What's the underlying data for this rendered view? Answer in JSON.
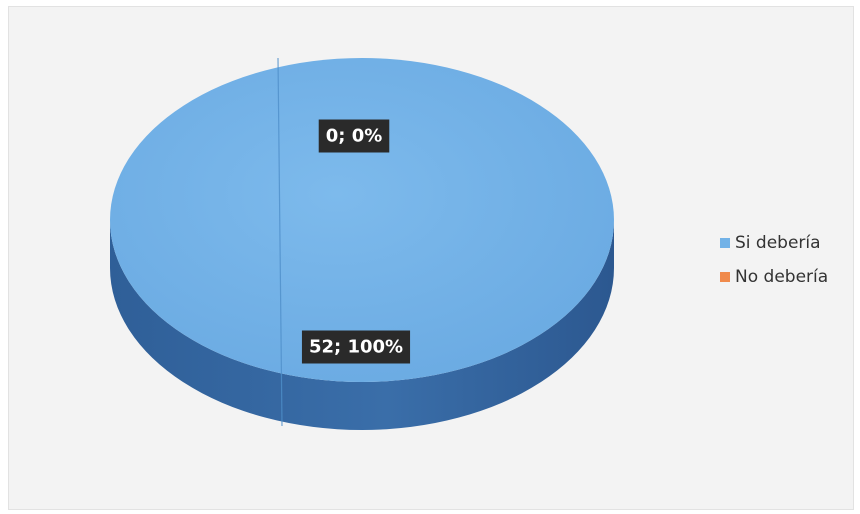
{
  "chart_data": {
    "type": "pie",
    "style": "3d",
    "categories": [
      "Si debería",
      "No debería"
    ],
    "values": [
      52,
      0
    ],
    "percentages": [
      "100%",
      "0%"
    ],
    "data_labels": [
      "52; 100%",
      "0; 0%"
    ],
    "colors": [
      "#72B2E7",
      "#F08A4B"
    ],
    "side_color": "#33659E",
    "legend": {
      "placement": "right",
      "entries": [
        "Si debería",
        "No debería"
      ]
    }
  }
}
